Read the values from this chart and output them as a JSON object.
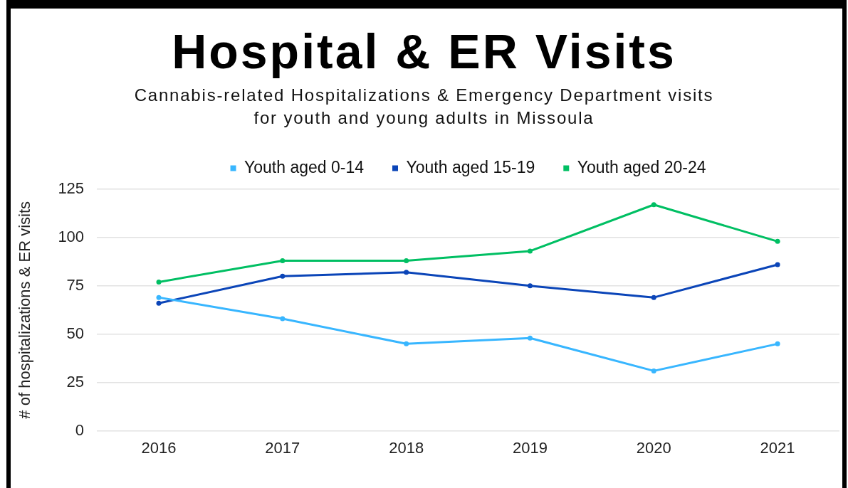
{
  "chart_data": {
    "type": "line",
    "title": "Hospital & ER Visits",
    "subtitle": "Cannabis-related Hospitalizations & Emergency Department visits for youth and young adults in Missoula",
    "ylabel": "# of hospitalizations & ER visits",
    "categories": [
      "2016",
      "2017",
      "2018",
      "2019",
      "2020",
      "2021"
    ],
    "series": [
      {
        "name": "Youth aged 0-14",
        "color": "#38b6ff",
        "values": [
          69,
          58,
          45,
          48,
          31,
          45
        ]
      },
      {
        "name": "Youth aged 15-19",
        "color": "#0b45b8",
        "values": [
          66,
          80,
          82,
          75,
          69,
          86
        ]
      },
      {
        "name": "Youth aged 20-24",
        "color": "#00bf63",
        "values": [
          77,
          88,
          88,
          93,
          117,
          98
        ]
      }
    ],
    "ylim": [
      0,
      125
    ],
    "yticks": [
      0,
      25,
      50,
      75,
      100,
      125
    ],
    "grid": "y",
    "legend": "top",
    "marker": "circle",
    "line_style": "solid"
  }
}
